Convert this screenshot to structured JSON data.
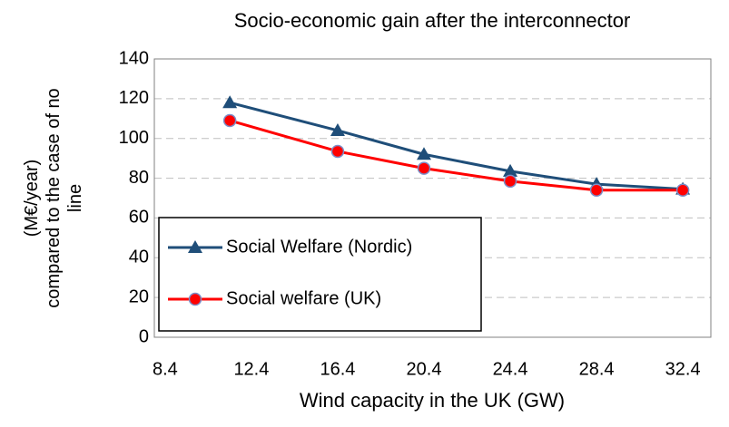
{
  "chart_data": {
    "type": "line",
    "title": "Socio-economic gain after the interconnector",
    "x_label": "Wind capacity in the UK (GW)",
    "y_label": [
      "(M€/year)",
      "compared to the case of no",
      "line"
    ],
    "x": [
      11.4,
      16.4,
      20.4,
      24.4,
      28.4,
      32.4
    ],
    "series": [
      {
        "name": "Social Welfare (Nordic)",
        "color": "#1f4e79",
        "marker": "triangle",
        "values": [
          118,
          104,
          92,
          83.5,
          77,
          74.5
        ]
      },
      {
        "name": "Social welfare (UK)",
        "color": "#ff0000",
        "marker": "circle",
        "values": [
          109,
          93.5,
          85,
          78.5,
          74,
          74
        ]
      }
    ],
    "xlim": [
      7.9,
      33.7
    ],
    "xticks": [
      8.4,
      12.4,
      16.4,
      20.4,
      24.4,
      28.4,
      32.4
    ],
    "ylim": [
      0,
      140
    ],
    "yticks": [
      0,
      20,
      40,
      60,
      80,
      100,
      120,
      140
    ],
    "grid": true,
    "legend": "lower left"
  }
}
